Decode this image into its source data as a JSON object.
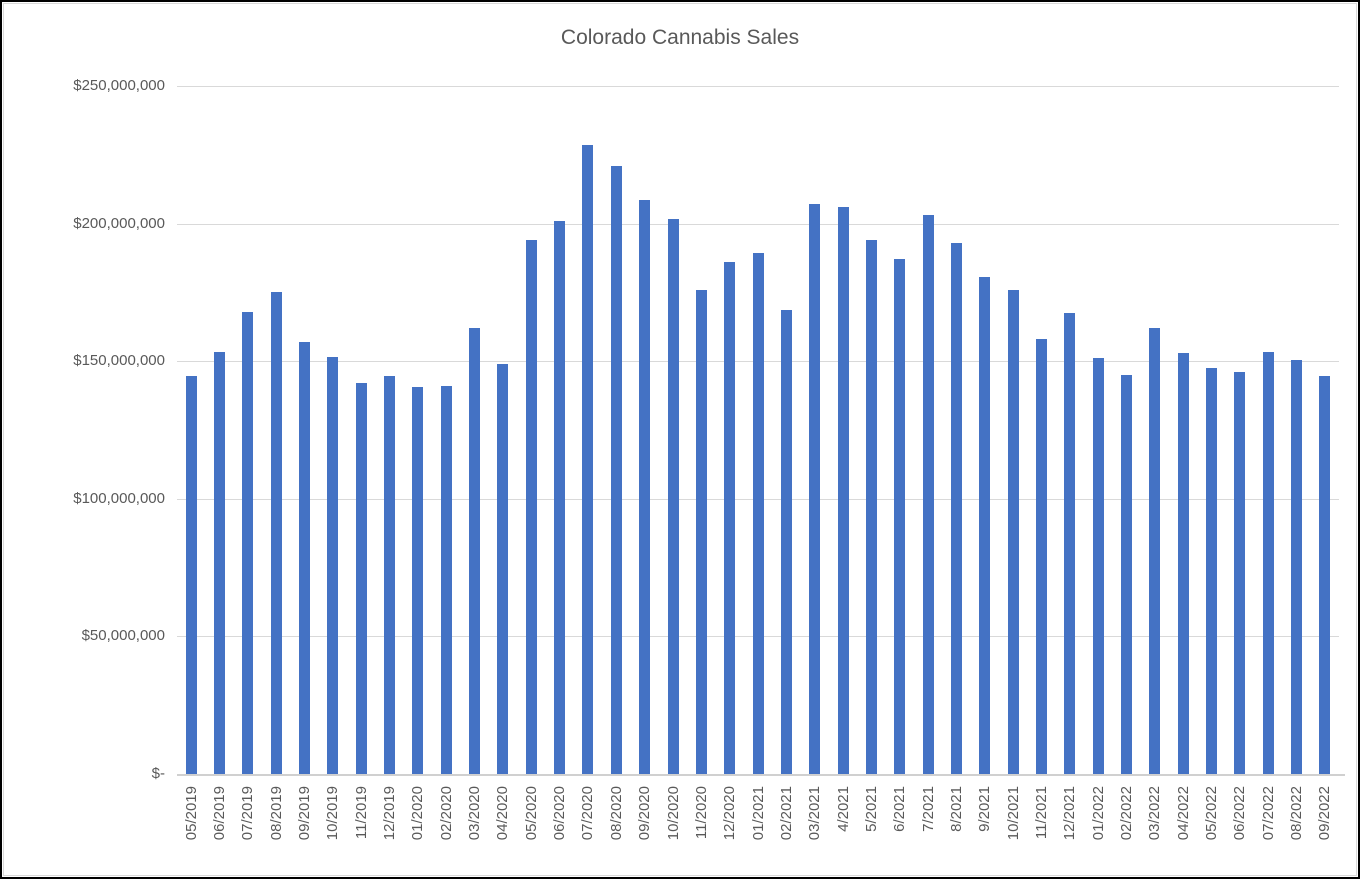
{
  "window": {
    "background_color": "#ffffff",
    "border_color": "#000000",
    "chart_frame_color": "#d9d9d9"
  },
  "chart_data": {
    "type": "bar",
    "title": "Colorado Cannabis Sales",
    "xlabel": "",
    "ylabel": "",
    "unit": "USD",
    "legend": "none",
    "grid": "horizontal",
    "bar_color": "#4472c4",
    "gridline_color": "#d9d9d9",
    "axis_line_color": "#d0d0d0",
    "text_color": "#595959",
    "ylim": [
      0,
      250000000
    ],
    "y_ticks": [
      {
        "label": "$250,000,000",
        "value": 250000000
      },
      {
        "label": "$200,000,000",
        "value": 200000000
      },
      {
        "label": "$150,000,000",
        "value": 150000000
      },
      {
        "label": "$100,000,000",
        "value": 100000000
      },
      {
        "label": "$50,000,000",
        "value": 50000000
      },
      {
        "label": "$-",
        "value": 0
      }
    ],
    "categories": [
      "05/2019",
      "06/2019",
      "07/2019",
      "08/2019",
      "09/2019",
      "10/2019",
      "11/2019",
      "12/2019",
      "01/2020",
      "02/2020",
      "03/2020",
      "04/2020",
      "05/2020",
      "06/2020",
      "07/2020",
      "08/2020",
      "09/2020",
      "10/2020",
      "11/2020",
      "12/2020",
      "01/2021",
      "02/2021",
      "03/2021",
      "4/2021",
      "5/2021",
      "6/2021",
      "7/2021",
      "8/2021",
      "9/2021",
      "10/2021",
      "11/2021",
      "12/2021",
      "01/2022",
      "02/2022",
      "03/2022",
      "04/2022",
      "05/2022",
      "06/2022",
      "07/2022",
      "08/2022",
      "09/2022"
    ],
    "values": [
      144500000,
      153500000,
      168000000,
      175000000,
      157000000,
      151500000,
      142000000,
      144500000,
      140500000,
      141000000,
      162000000,
      149000000,
      194000000,
      201000000,
      228500000,
      221000000,
      208500000,
      201500000,
      176000000,
      186000000,
      189500000,
      168500000,
      207000000,
      206000000,
      194000000,
      187000000,
      203000000,
      193000000,
      180500000,
      176000000,
      158000000,
      167500000,
      151000000,
      145000000,
      162000000,
      153000000,
      147500000,
      146000000,
      153500000,
      150500000,
      144500000
    ]
  }
}
